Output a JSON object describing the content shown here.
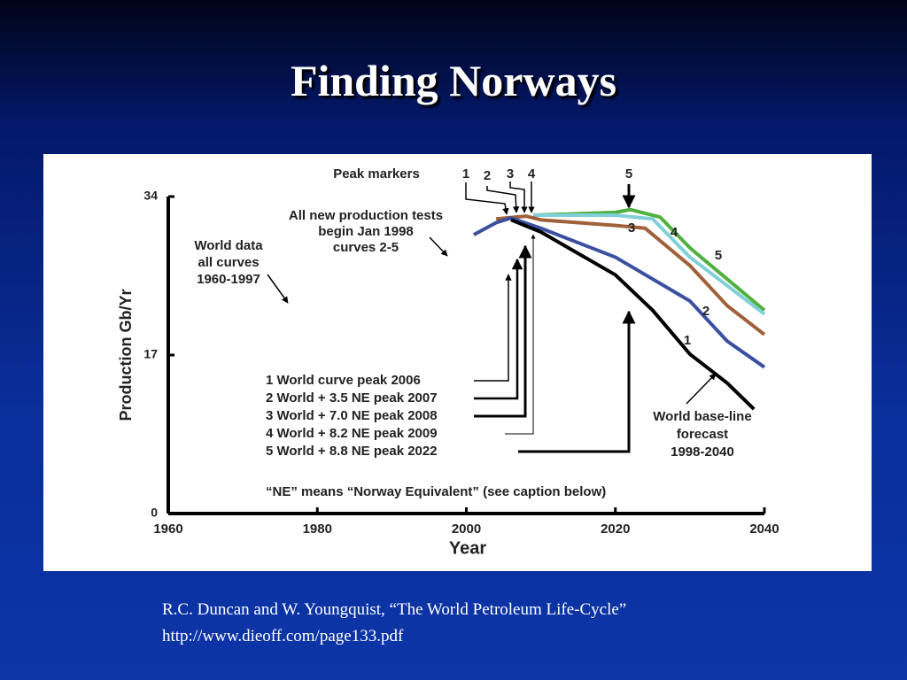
{
  "title": "Finding Norways",
  "caption": [
    "R.C. Duncan and W. Youngquist, “The World Petroleum Life-Cycle”",
    "http://www.dieoff.com/page133.pdf"
  ],
  "chart_data": {
    "type": "line",
    "xlabel": "Year",
    "ylabel": "Production Gb/Yr",
    "xlim": [
      1960,
      2040
    ],
    "xticks": [
      1960,
      1980,
      2000,
      2020,
      2040
    ],
    "ylim": [
      0,
      34
    ],
    "yticks": [
      0,
      17,
      34
    ],
    "series": [
      {
        "name": "1",
        "color": "#000000",
        "x": [
          2006,
          2010,
          2020,
          2025,
          2030,
          2035,
          2038.6
        ],
        "values": [
          31.5,
          30.2,
          25.6,
          21.8,
          17.1,
          14.0,
          11.2
        ]
      },
      {
        "name": "2",
        "color": "#3a4fa0",
        "x": [
          2001,
          2004,
          2006,
          2010,
          2020,
          2030,
          2035,
          2040
        ],
        "values": [
          29.9,
          31.2,
          31.7,
          30.6,
          27.5,
          22.8,
          18.5,
          15.7
        ]
      },
      {
        "name": "3",
        "color": "#a0603a",
        "x": [
          2004,
          2008,
          2010,
          2020,
          2024,
          2030,
          2035,
          2040
        ],
        "values": [
          31.6,
          31.9,
          31.5,
          30.9,
          30.6,
          26.6,
          22.3,
          19.2
        ]
      },
      {
        "name": "4",
        "color": "#80d0d8",
        "x": [
          2009,
          2020,
          2025,
          2030,
          2040
        ],
        "values": [
          32.0,
          32.0,
          31.6,
          27.5,
          21.4
        ]
      },
      {
        "name": "5",
        "color": "#50b040",
        "x": [
          2009,
          2020,
          2022,
          2026,
          2030,
          2040
        ],
        "values": [
          32.0,
          32.3,
          32.6,
          31.8,
          28.5,
          21.8
        ]
      }
    ],
    "annotations": [
      "Peak markers",
      "All new production tests",
      "begin Jan 1998",
      "curves 2-5",
      "World data",
      "all curves",
      "1960-1997",
      "1 World curve peak 2006",
      "2 World + 3.5 NE peak 2007",
      "3 World + 7.0 NE peak 2008",
      "4 World + 8.2 NE peak 2009",
      "5 World + 8.8 NE peak 2022",
      "“NE” means “Norway Equivalent” (see caption below)",
      "World base-line",
      "forecast",
      "1998-2040",
      "1",
      "2",
      "3",
      "4",
      "5"
    ]
  }
}
